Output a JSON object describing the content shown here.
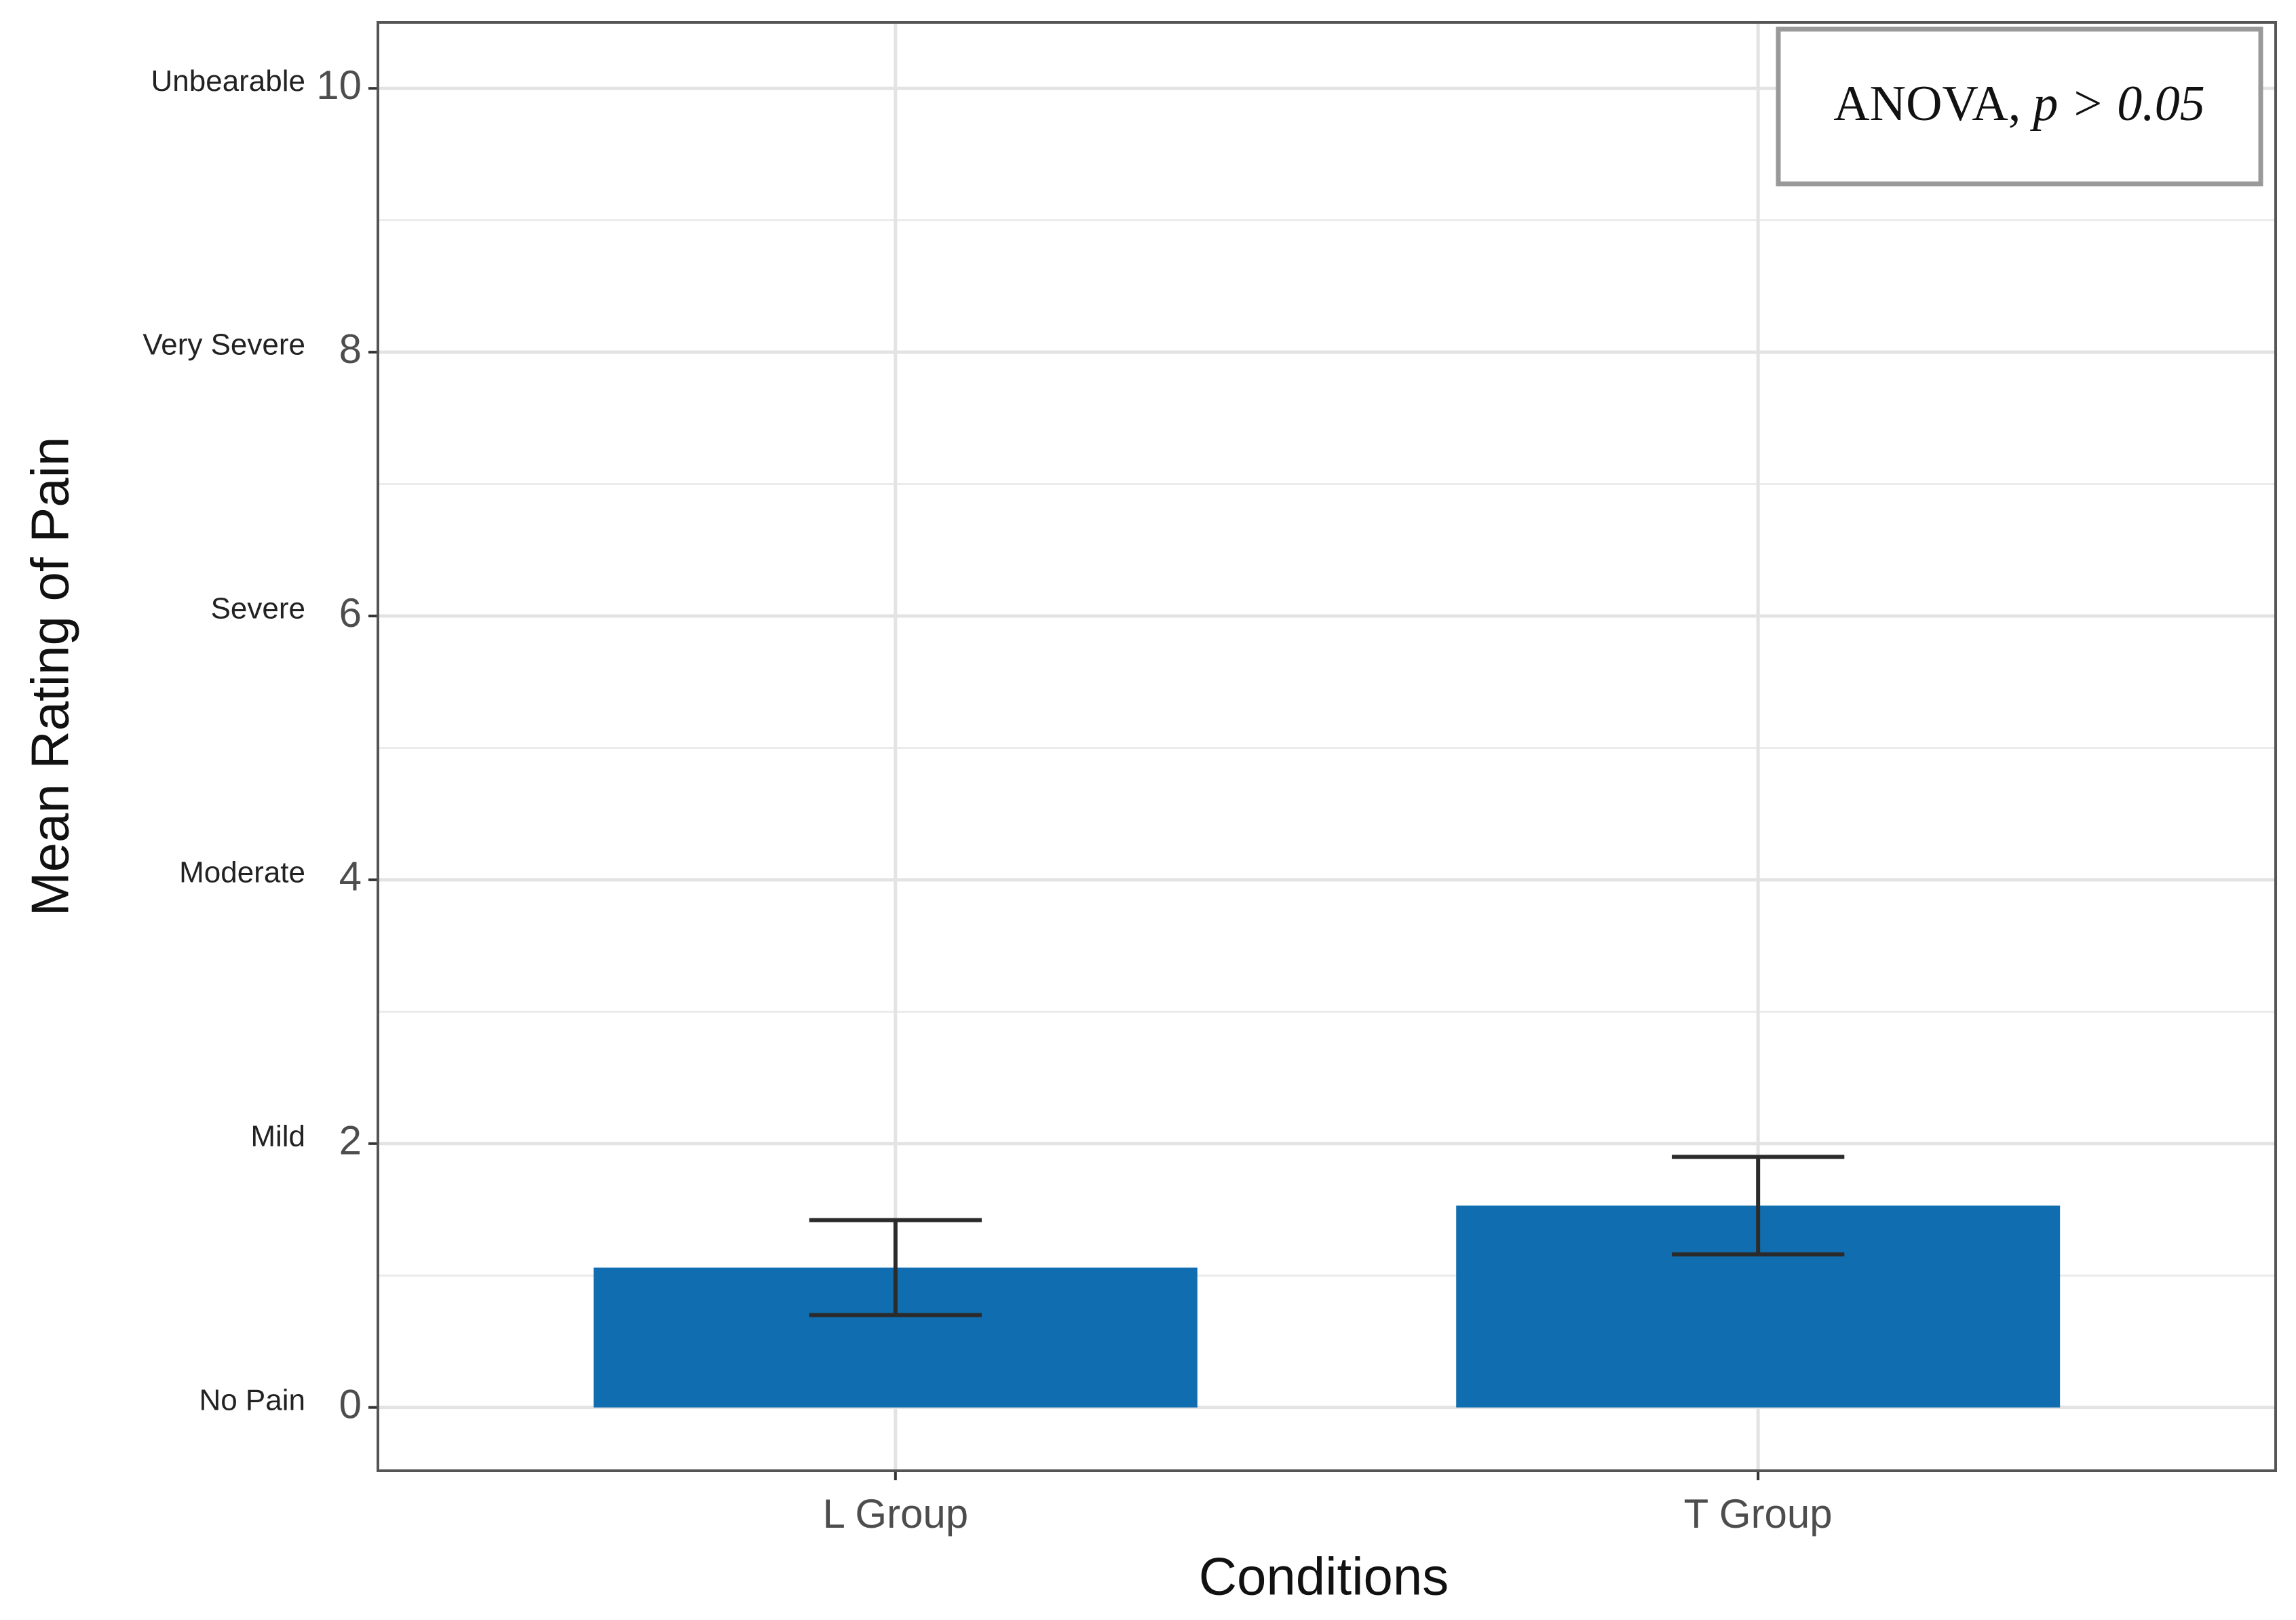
{
  "chart_data": {
    "type": "bar",
    "categories": [
      "L Group",
      "T Group"
    ],
    "values": [
      1.06,
      1.53
    ],
    "errors": [
      0.36,
      0.37
    ],
    "color": "#106eb0",
    "error_color": "#2b2b2b",
    "xlabel": "Conditions",
    "ylabel": "Mean Rating of Pain",
    "ylim": [
      -0.48,
      10.5
    ],
    "yticks": [
      0,
      2,
      4,
      6,
      8,
      10
    ],
    "minor_yticks": [
      1,
      3,
      5,
      7,
      9
    ],
    "ytick_descriptors": [
      "No Pain",
      "Mild",
      "Moderate",
      "Severe",
      "Very Severe",
      "Unbearable"
    ],
    "grid": true,
    "annotation": [
      "ANOVA,",
      "p > 0.05"
    ]
  }
}
